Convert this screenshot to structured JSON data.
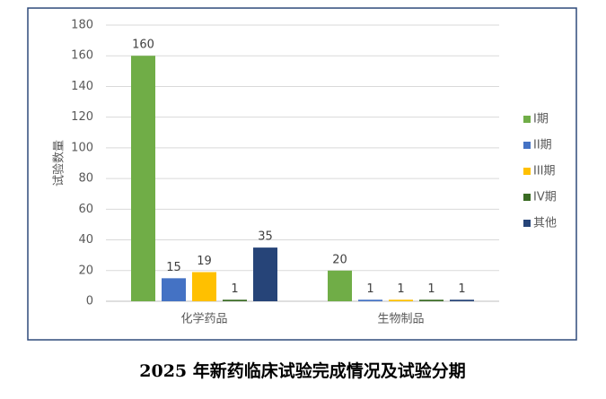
{
  "chart_data": {
    "type": "bar",
    "categories": [
      "化学药品",
      "生物制品"
    ],
    "series": [
      {
        "name": "I期",
        "color": "#70ad47",
        "values": [
          160,
          20
        ]
      },
      {
        "name": "II期",
        "color": "#4472c4",
        "values": [
          15,
          1
        ]
      },
      {
        "name": "III期",
        "color": "#ffc000",
        "values": [
          19,
          1
        ]
      },
      {
        "name": "IV期",
        "color": "#3a6b23",
        "values": [
          1,
          1
        ]
      },
      {
        "name": "其他",
        "color": "#264478",
        "values": [
          35,
          1
        ]
      }
    ],
    "y_label": "试验数量",
    "ylim": [
      0,
      180
    ],
    "yticks": [
      0,
      20,
      40,
      60,
      80,
      100,
      120,
      140,
      160,
      180
    ],
    "grid": true,
    "legend": "right"
  },
  "caption": "2025 年新药临床试验完成情况及试验分期"
}
